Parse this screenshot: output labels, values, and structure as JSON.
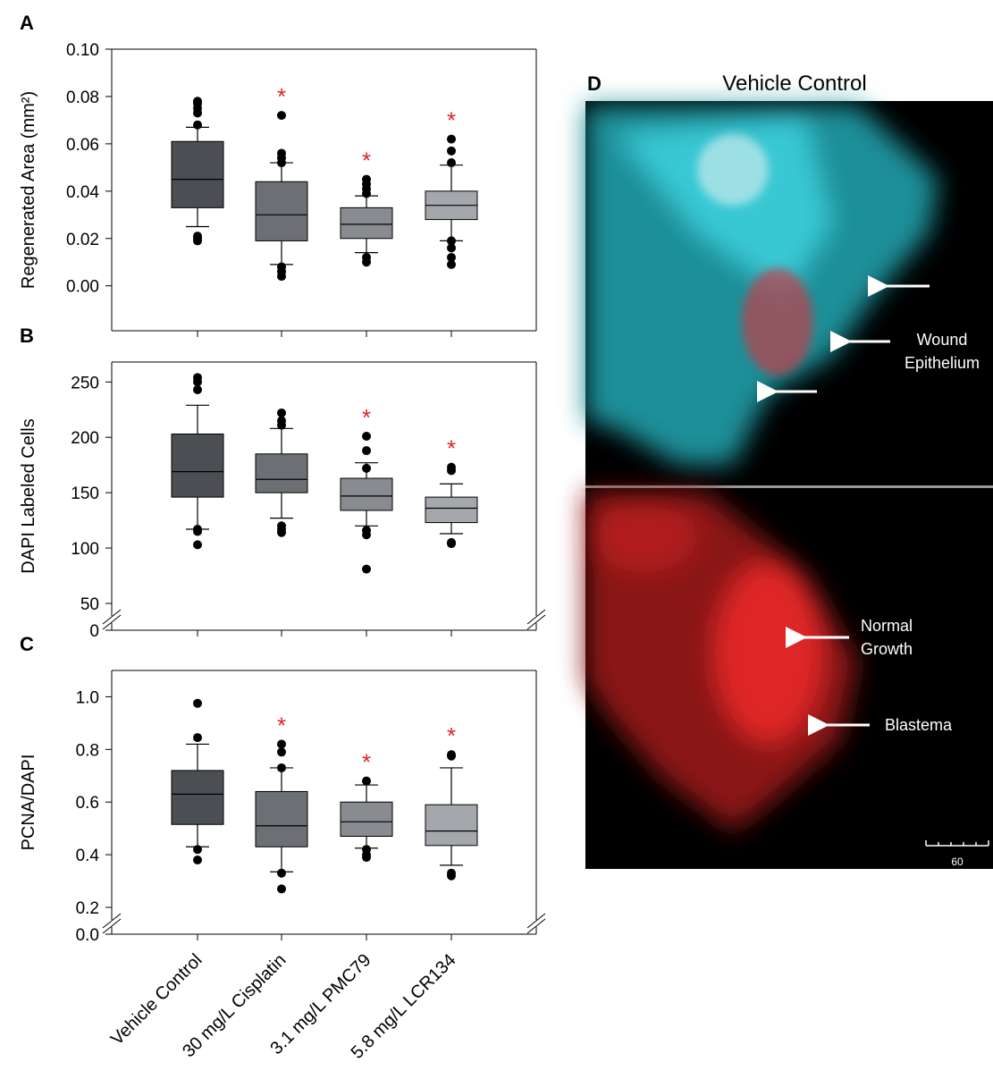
{
  "chart_data": [
    {
      "type": "box",
      "panel_label": "A",
      "ylabel": "Regenerated Area (mm²)",
      "ylim": [
        -0.019,
        0.1
      ],
      "yticks": [
        {
          "value": 0,
          "label": "0.00"
        },
        {
          "value": 0.02,
          "label": "0.02"
        },
        {
          "value": 0.04,
          "label": "0.04"
        },
        {
          "value": 0.06,
          "label": "0.06"
        },
        {
          "value": 0.08,
          "label": "0.08"
        },
        {
          "value": 0.1,
          "label": "0.10"
        }
      ],
      "significance": [
        null,
        "*",
        "*",
        "*"
      ],
      "boxes": [
        {
          "color": "#4b4e53",
          "low": 0.025,
          "q1": 0.033,
          "median": 0.045,
          "q3": 0.061,
          "high": 0.067,
          "outliers": [
            0.078,
            0.077,
            0.075,
            0.073,
            0.068,
            0.021,
            0.02,
            0.019
          ]
        },
        {
          "color": "#6c6f74",
          "low": 0.009,
          "q1": 0.019,
          "median": 0.03,
          "q3": 0.044,
          "high": 0.052,
          "outliers": [
            0.072,
            0.056,
            0.054,
            0.052,
            0.008,
            0.006,
            0.004
          ]
        },
        {
          "color": "#888b90",
          "low": 0.014,
          "q1": 0.02,
          "median": 0.026,
          "q3": 0.033,
          "high": 0.038,
          "outliers": [
            0.045,
            0.043,
            0.041,
            0.039,
            0.012,
            0.01
          ]
        },
        {
          "color": "#a4a7ac",
          "low": 0.019,
          "q1": 0.028,
          "median": 0.034,
          "q3": 0.04,
          "high": 0.051,
          "outliers": [
            0.062,
            0.057,
            0.052,
            0.019,
            0.016,
            0.012,
            0.009
          ]
        }
      ]
    },
    {
      "type": "box",
      "panel_label": "B",
      "ylabel": "DAPI Labeled Cells",
      "ylim": [
        0,
        268
      ],
      "axis_break": [
        0,
        50
      ],
      "yticks": [
        0,
        50,
        100,
        150,
        200,
        250
      ],
      "significance": [
        null,
        null,
        "*",
        "*"
      ],
      "boxes": [
        {
          "color": "#4b4e53",
          "low": 117,
          "q1": 146,
          "median": 169,
          "q3": 203,
          "high": 229,
          "outliers": [
            254,
            250,
            243,
            117,
            115,
            103
          ]
        },
        {
          "color": "#6c6f74",
          "low": 127,
          "q1": 150,
          "median": 162,
          "q3": 185,
          "high": 208,
          "outliers": [
            222,
            215,
            211,
            120,
            117,
            114
          ]
        },
        {
          "color": "#888b90",
          "low": 120,
          "q1": 134,
          "median": 147,
          "q3": 163,
          "high": 177,
          "outliers": [
            201,
            188,
            172,
            116,
            112,
            81
          ]
        },
        {
          "color": "#a4a7ac",
          "low": 113,
          "q1": 123,
          "median": 136,
          "q3": 146,
          "high": 158,
          "outliers": [
            173,
            170,
            105,
            104
          ]
        }
      ]
    },
    {
      "type": "box",
      "panel_label": "C",
      "ylabel": "PCNA/DAPI",
      "ylim": [
        0,
        1.1
      ],
      "axis_break": [
        0,
        0.2
      ],
      "yticks": [
        {
          "value": 0,
          "label": "0.0"
        },
        0.2,
        0.4,
        0.6,
        0.8,
        {
          "value": 1,
          "label": "1.0"
        }
      ],
      "significance": [
        null,
        "*",
        "*",
        "*"
      ],
      "categories": [
        "Vehicle Control",
        "30 mg/L Cisplatin",
        "3.1 mg/L PMC79",
        "5.8 mg/L LCR134"
      ],
      "boxes": [
        {
          "color": "#4b4e53",
          "low": 0.43,
          "q1": 0.515,
          "median": 0.63,
          "q3": 0.72,
          "high": 0.82,
          "outliers": [
            0.975,
            0.845,
            0.42,
            0.38
          ]
        },
        {
          "color": "#6c6f74",
          "low": 0.335,
          "q1": 0.43,
          "median": 0.51,
          "q3": 0.64,
          "high": 0.73,
          "outliers": [
            0.82,
            0.79,
            0.73,
            0.33,
            0.27
          ]
        },
        {
          "color": "#888b90",
          "low": 0.425,
          "q1": 0.47,
          "median": 0.525,
          "q3": 0.6,
          "high": 0.665,
          "outliers": [
            0.68,
            0.42,
            0.4,
            0.39
          ]
        },
        {
          "color": "#a4a7ac",
          "low": 0.36,
          "q1": 0.435,
          "median": 0.49,
          "q3": 0.59,
          "high": 0.73,
          "outliers": [
            0.78,
            0.775,
            0.33,
            0.32
          ]
        }
      ]
    }
  ],
  "image_panel": {
    "label": "D",
    "title": "Vehicle Control",
    "annotations": [
      [
        "Wound",
        "Epithelium"
      ],
      [
        "Normal",
        "Growth"
      ],
      [
        "Blastema"
      ]
    ],
    "scale_bar": "60"
  }
}
